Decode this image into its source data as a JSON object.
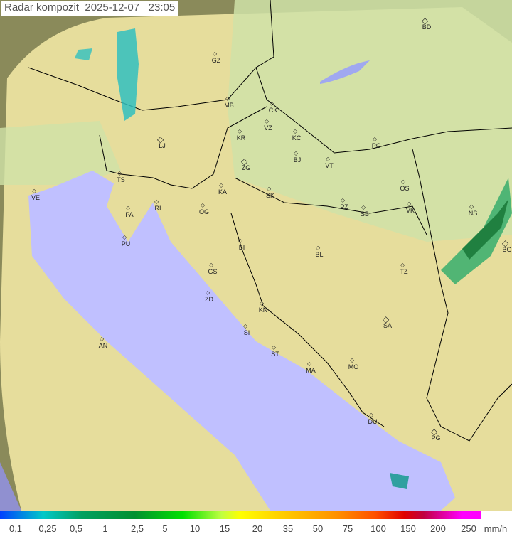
{
  "title": "Radar kompozit",
  "date": "2025-12-07",
  "time": "23:05",
  "colors": {
    "sea": "#c0c0ff",
    "land": "#e8e0a0",
    "outside_range": "#8a8a5a",
    "border": "#000000"
  },
  "cities": [
    "GZ",
    "BD",
    "MB",
    "CK",
    "VZ",
    "KR",
    "KC",
    "PC",
    "LJ",
    "ZG",
    "BJ",
    "VT",
    "TS",
    "VE",
    "KA",
    "SK",
    "OS",
    "NS",
    "RI",
    "PA",
    "OG",
    "PZ",
    "SB",
    "VK",
    "PU",
    "BG",
    "BI",
    "BL",
    "GS",
    "TZ",
    "ZD",
    "KN",
    "SA",
    "SI",
    "AN",
    "ST",
    "MO",
    "MA",
    "DU",
    "PG"
  ],
  "legend": {
    "ticks": [
      "0,1",
      "0,25",
      "0,5",
      "1",
      "2,5",
      "5",
      "10",
      "15",
      "20",
      "35",
      "50",
      "75",
      "100",
      "150",
      "200",
      "250"
    ],
    "unit": "mm/h"
  }
}
